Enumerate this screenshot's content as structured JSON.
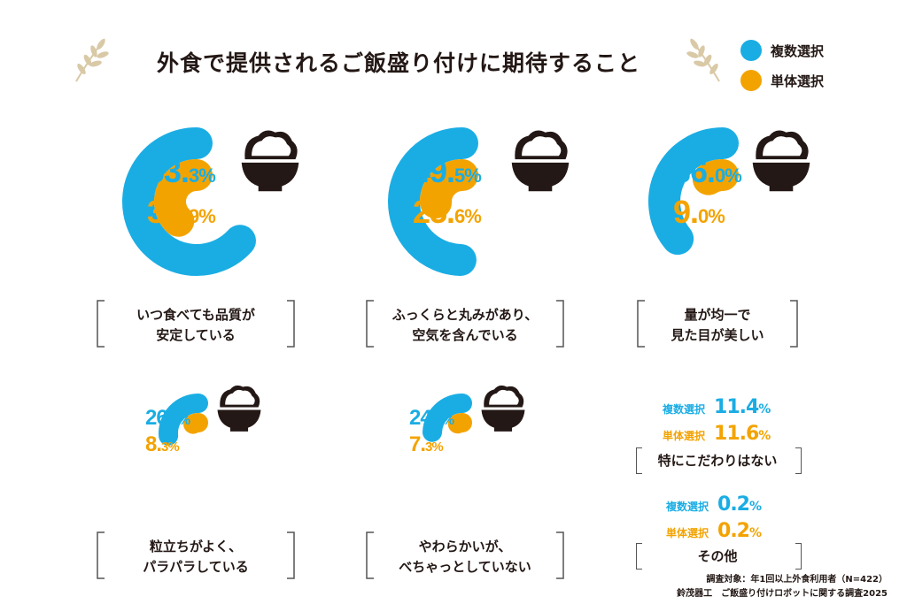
{
  "title": "外食で提供されるご飯盛り付けに期待すること",
  "legend": [
    {
      "label": "複数選択",
      "color": "#1AADE4"
    },
    {
      "label": "単体選択",
      "color": "#F3A300"
    }
  ],
  "chart_data": {
    "type": "radial-bar",
    "title": "外食で提供されるご飯盛り付けに期待すること",
    "series_names": [
      "複数選択",
      "単体選択"
    ],
    "colors": {
      "multiple": "#1AADE4",
      "single": "#F3A300"
    },
    "categories": [
      {
        "label_lines": [
          "いつ食べても品質が",
          "安定している"
        ],
        "multiple": 63.3,
        "single": 37.9,
        "multiple_text": "63.3",
        "single_text": "37.9"
      },
      {
        "label_lines": [
          "ふっくらと丸みがあり、",
          "空気を含んでいる"
        ],
        "multiple": 49.5,
        "single": 25.6,
        "multiple_text": "49.5",
        "single_text": "25.6"
      },
      {
        "label_lines": [
          "量が均一で",
          "見た目が美しい"
        ],
        "multiple": 36.0,
        "single": 9.0,
        "multiple_text": "36.0",
        "single_text": "9.0"
      },
      {
        "label_lines": [
          "粒立ちがよく、",
          "パラパラしている"
        ],
        "multiple": 26.3,
        "single": 8.3,
        "multiple_text": "26.3",
        "single_text": "8.3"
      },
      {
        "label_lines": [
          "やわらかいが、",
          "べちゃっとしていない"
        ],
        "multiple": 24.4,
        "single": 7.3,
        "multiple_text": "24.4",
        "single_text": "7.3"
      }
    ],
    "unit": "%"
  },
  "other_items": [
    {
      "label": "特にこだわりはない",
      "multiple_label": "複数選択",
      "multiple_value": "11.4",
      "single_label": "単体選択",
      "single_value": "11.6"
    },
    {
      "label": "その他",
      "multiple_label": "複数選択",
      "multiple_value": "0.2",
      "single_label": "単体選択",
      "single_value": "0.2"
    }
  ],
  "footnote": {
    "line1": "調査対象：年1回以上外食利用者（N=422）",
    "line2": "鈴茂器工　ご飯盛り付けロボットに関する調査2025"
  }
}
